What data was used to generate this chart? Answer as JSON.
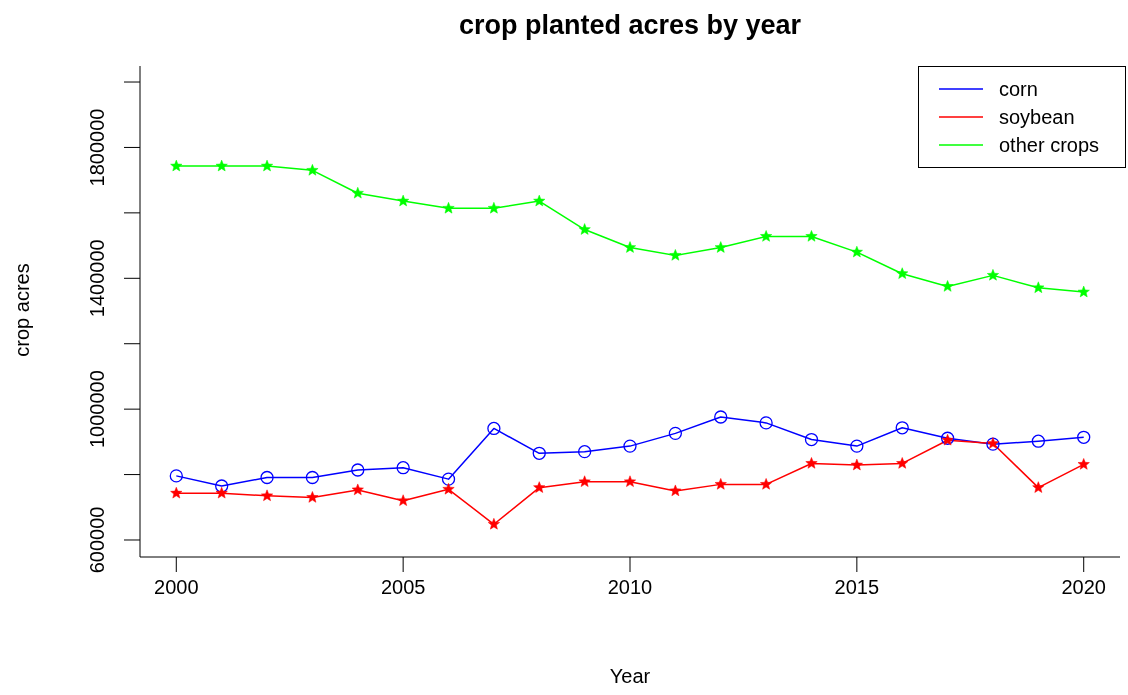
{
  "chart_data": {
    "type": "line",
    "title": "crop planted acres by year",
    "xlabel": "Year",
    "ylabel": "crop acres",
    "x": [
      2000,
      2001,
      2002,
      2003,
      2004,
      2005,
      2006,
      2007,
      2008,
      2009,
      2010,
      2011,
      2012,
      2013,
      2014,
      2015,
      2016,
      2017,
      2018,
      2019,
      2020
    ],
    "series": [
      {
        "name": "corn",
        "color": "#0000ff",
        "marker": "circle",
        "values": [
          796000,
          765000,
          791000,
          791000,
          814000,
          821000,
          786000,
          941000,
          865000,
          870000,
          887000,
          926000,
          976000,
          958000,
          907000,
          887000,
          943000,
          911000,
          893000,
          902000,
          914000
        ]
      },
      {
        "name": "soybean",
        "color": "#ff0000",
        "marker": "star",
        "values": [
          743000,
          743000,
          735000,
          730000,
          753000,
          720000,
          755000,
          648000,
          760000,
          778000,
          778000,
          750000,
          770000,
          770000,
          834000,
          829000,
          834000,
          905000,
          895000,
          760000,
          831000
        ]
      },
      {
        "name": "other crops",
        "color": "#00ff00",
        "marker": "star",
        "values": [
          1743000,
          1743000,
          1743000,
          1730000,
          1660000,
          1636000,
          1614000,
          1614000,
          1636000,
          1549000,
          1494000,
          1470000,
          1494000,
          1528000,
          1528000,
          1480000,
          1414000,
          1375000,
          1409000,
          1371000,
          1358000
        ]
      }
    ],
    "xlim": [
      1999.2,
      2020.8
    ],
    "xticks": [
      2000,
      2005,
      2010,
      2015,
      2020
    ],
    "ylim": [
      548000,
      2049000
    ],
    "yticks": [
      600000,
      {
        "value": 800000,
        "label": null
      },
      1000000,
      {
        "value": 1200000,
        "label": null
      },
      1400000,
      {
        "value": 1600000,
        "label": null
      },
      1800000,
      {
        "value": 2000000,
        "label": null
      }
    ],
    "legend": "top right",
    "grid": false,
    "line_style": "solid"
  }
}
